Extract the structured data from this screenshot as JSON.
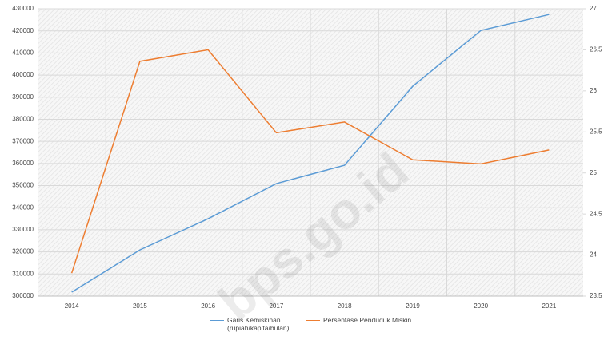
{
  "chart_data": {
    "type": "line",
    "x": [
      "2014",
      "2015",
      "2016",
      "2017",
      "2018",
      "2019",
      "2020",
      "2021"
    ],
    "series": [
      {
        "name": "Garis Kemiskinan (rupiah/kapita/bulan)",
        "color": "#5b9bd5",
        "values": [
          301800,
          320900,
          335000,
          350900,
          359200,
          394900,
          420200,
          427400
        ]
      },
      {
        "name": "Persentase Penduduk Miskin",
        "color": "#ed7d31",
        "axis": "y2",
        "values": [
          23.78,
          26.36,
          26.5,
          25.49,
          25.62,
          25.16,
          25.11,
          25.28
        ]
      }
    ],
    "ylim": [
      300000,
      430000
    ],
    "yticks": [
      300000,
      310000,
      320000,
      330000,
      340000,
      350000,
      360000,
      370000,
      380000,
      390000,
      400000,
      410000,
      420000,
      430000
    ],
    "y2lim": [
      23.5,
      27
    ],
    "y2ticks": [
      23.5,
      24,
      24.5,
      25,
      25.5,
      26,
      26.5,
      27
    ],
    "grid": true,
    "legend": "bottom",
    "watermark": "bps.go.id"
  }
}
